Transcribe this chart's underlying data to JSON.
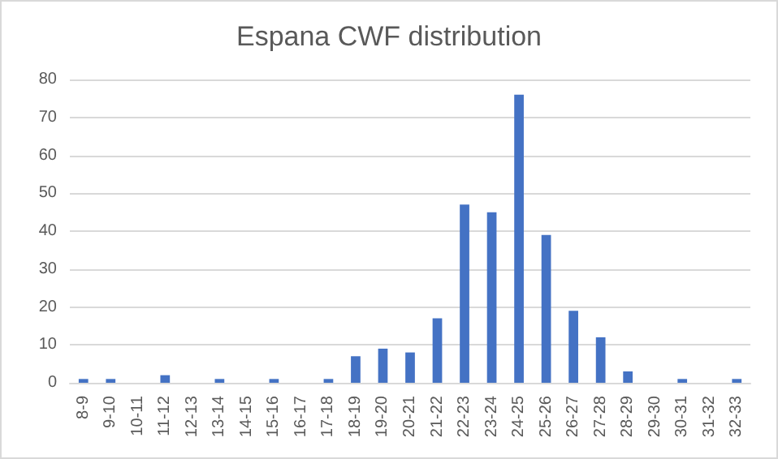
{
  "chart_data": {
    "type": "bar",
    "title": "Espana CWF distribution",
    "categories": [
      "8-9",
      "9-10",
      "10-11",
      "11-12",
      "12-13",
      "13-14",
      "14-15",
      "15-16",
      "16-17",
      "17-18",
      "18-19",
      "19-20",
      "20-21",
      "21-22",
      "22-23",
      "23-24",
      "24-25",
      "25-26",
      "26-27",
      "27-28",
      "28-29",
      "29-30",
      "30-31",
      "31-32",
      "32-33"
    ],
    "values": [
      1,
      1,
      0,
      2,
      0,
      1,
      0,
      1,
      0,
      1,
      7,
      9,
      8,
      17,
      47,
      45,
      76,
      39,
      19,
      12,
      3,
      0,
      1,
      0,
      1
    ],
    "color": "#4472c4",
    "ylim": [
      0,
      80
    ],
    "yticks": [
      0,
      10,
      20,
      30,
      40,
      50,
      60,
      70,
      80
    ],
    "grid": "y"
  }
}
